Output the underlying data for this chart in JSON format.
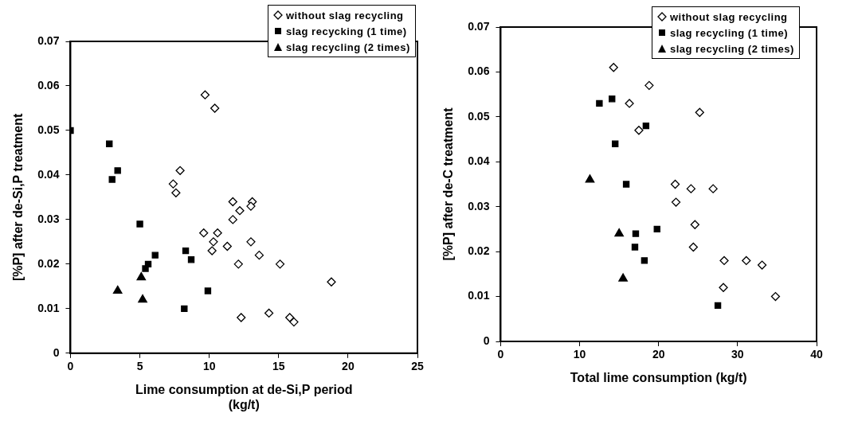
{
  "chart_data": [
    {
      "type": "scatter",
      "xlabel": "Lime consumption at de-Si,P period\n(kg/t)",
      "ylabel": "[%P] after de-Si,P treatment",
      "xlim": [
        0,
        25
      ],
      "xticks": [
        0,
        5,
        10,
        15,
        20,
        25
      ],
      "ylim": [
        0,
        0.07
      ],
      "yticks": [
        0,
        0.01,
        0.02,
        0.03,
        0.04,
        0.05,
        0.06,
        0.07
      ],
      "grid": false,
      "legend": "top right",
      "series": [
        {
          "name": "without slag recycling",
          "color": "#000000",
          "marker": "diamond",
          "x": [
            9.7,
            10.4,
            7.9,
            7.4,
            7.6,
            11.7,
            13.1,
            12.2,
            13.0,
            11.7,
            9.6,
            10.6,
            10.3,
            10.2,
            11.3,
            13.0,
            13.6,
            12.1,
            15.1,
            18.8,
            12.3,
            14.3,
            15.8,
            16.1
          ],
          "values": [
            0.058,
            0.055,
            0.041,
            0.038,
            0.036,
            0.034,
            0.034,
            0.032,
            0.033,
            0.03,
            0.027,
            0.027,
            0.025,
            0.023,
            0.024,
            0.025,
            0.022,
            0.02,
            0.02,
            0.016,
            0.008,
            0.009,
            0.008,
            0.007
          ]
        },
        {
          "name": "slag recycking (1 time)",
          "color": "#000000",
          "marker": "square",
          "x": [
            0,
            2.8,
            3.0,
            3.4,
            5.0,
            5.4,
            5.6,
            6.1,
            8.3,
            8.7,
            9.9,
            8.2
          ],
          "values": [
            0.05,
            0.047,
            0.039,
            0.041,
            0.029,
            0.019,
            0.02,
            0.022,
            0.023,
            0.021,
            0.014,
            0.01
          ]
        },
        {
          "name": "slag recycling (2 times)",
          "color": "#000000",
          "marker": "triangle",
          "x": [
            3.4,
            5.1,
            5.2
          ],
          "values": [
            0.014,
            0.017,
            0.012
          ]
        }
      ]
    },
    {
      "type": "scatter",
      "xlabel": "Total lime consumption (kg/t)",
      "ylabel": "[%P] after de-C treatment",
      "xlim": [
        0,
        40
      ],
      "xticks": [
        0,
        10,
        20,
        30,
        40
      ],
      "ylim": [
        0,
        0.07
      ],
      "yticks": [
        0,
        0.01,
        0.02,
        0.03,
        0.04,
        0.05,
        0.06,
        0.07
      ],
      "grid": false,
      "legend": "top right",
      "series": [
        {
          "name": "without slag recycling",
          "color": "#000000",
          "marker": "diamond",
          "x": [
            14.3,
            18.8,
            16.3,
            25.2,
            17.5,
            22.1,
            24.1,
            26.9,
            22.2,
            24.6,
            24.4,
            28.3,
            31.1,
            33.1,
            28.2,
            34.8
          ],
          "values": [
            0.061,
            0.057,
            0.053,
            0.051,
            0.047,
            0.035,
            0.034,
            0.034,
            0.031,
            0.026,
            0.021,
            0.018,
            0.018,
            0.017,
            0.012,
            0.01
          ]
        },
        {
          "name": "slag recycling (1 time)",
          "color": "#000000",
          "marker": "square",
          "x": [
            12.5,
            14.1,
            14.5,
            15.9,
            18.4,
            17.1,
            17.0,
            18.2,
            19.8,
            27.5
          ],
          "values": [
            0.053,
            0.054,
            0.044,
            0.035,
            0.048,
            0.024,
            0.021,
            0.018,
            0.025,
            0.008
          ]
        },
        {
          "name": "slag recycling (2 times)",
          "color": "#000000",
          "marker": "triangle",
          "x": [
            11.3,
            15.0,
            15.5
          ],
          "values": [
            0.036,
            0.024,
            0.014
          ]
        }
      ]
    }
  ]
}
